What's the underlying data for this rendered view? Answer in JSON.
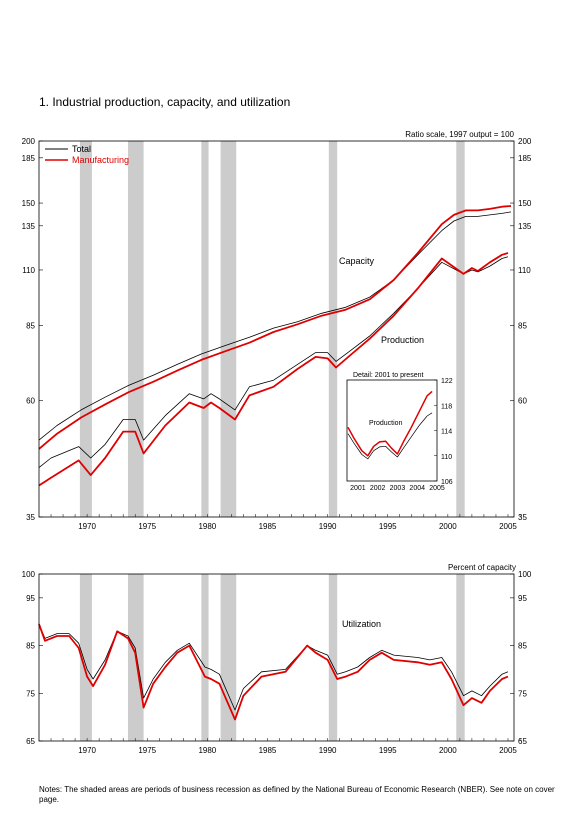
{
  "title": "1.  Industrial production, capacity, and utilization",
  "notes": "Notes: The shaded areas are periods of business recession as defined by the National Bureau of Economic Research (NBER). See note on cover page.",
  "colors": {
    "total": "#000000",
    "manufacturing": "#e00000",
    "recession": "#cccccc"
  },
  "chart_data": [
    {
      "type": "line",
      "scale_note": "Ratio scale, 1997 output = 100",
      "yscale": "log",
      "ylim": [
        35,
        200
      ],
      "yticks": [
        35,
        60,
        85,
        110,
        135,
        150,
        185,
        200
      ],
      "yticks_label": [
        "35",
        "60",
        "85",
        "110",
        "135",
        "150",
        "185",
        "200"
      ],
      "xlim": [
        1966.5,
        2006
      ],
      "xticks": [
        1970,
        1975,
        1980,
        1985,
        1990,
        1995,
        2000,
        2005
      ],
      "xticks_label": [
        "1970",
        "1975",
        "1980",
        "1985",
        "1990",
        "1995",
        "2000",
        "2005"
      ],
      "legend": [
        "Total",
        "Manufacturing"
      ],
      "legend_position": "top-left",
      "annotations": [
        "Capacity",
        "Production"
      ],
      "recessions": [
        [
          1969.9,
          1970.9
        ],
        [
          1973.9,
          1975.2
        ],
        [
          1980.0,
          1980.6
        ],
        [
          1981.6,
          1982.9
        ],
        [
          1990.6,
          1991.3
        ],
        [
          2001.2,
          2001.9
        ]
      ],
      "series": [
        {
          "name": "Total",
          "group": "Capacity",
          "x": [
            1966.5,
            1968,
            1970,
            1972,
            1974,
            1976,
            1978,
            1980,
            1982,
            1984,
            1986,
            1988,
            1990,
            1992,
            1994,
            1996,
            1998,
            2000,
            2001,
            2002,
            2003,
            2004,
            2005,
            2005.75
          ],
          "values": [
            50,
            53.5,
            57.5,
            61,
            64.5,
            67.5,
            71,
            74.5,
            77.5,
            80.5,
            84,
            86.5,
            90,
            92.5,
            97,
            105,
            118,
            132,
            138,
            141,
            141,
            142,
            143,
            144
          ]
        },
        {
          "name": "Manufacturing",
          "group": "Capacity",
          "x": [
            1966.5,
            1968,
            1970,
            1972,
            1974,
            1976,
            1978,
            1980,
            1982,
            1984,
            1986,
            1988,
            1990,
            1992,
            1994,
            1996,
            1998,
            2000,
            2001,
            2002,
            2003,
            2004,
            2005,
            2005.75
          ],
          "values": [
            48,
            51.5,
            55.5,
            59,
            62.5,
            65.5,
            69,
            72.5,
            75.5,
            78.5,
            82.5,
            85.5,
            89,
            91.5,
            96,
            105,
            119,
            136,
            142,
            145,
            145,
            146,
            147.5,
            148
          ]
        },
        {
          "name": "Total",
          "group": "Production",
          "x": [
            1966.5,
            1967.5,
            1969.8,
            1970.8,
            1972,
            1973.5,
            1974.5,
            1975.2,
            1977,
            1979,
            1980.2,
            1980.8,
            1981.5,
            1982.8,
            1984,
            1986,
            1988,
            1989.5,
            1990.5,
            1991.2,
            1992.5,
            1994,
            1996,
            1998,
            2000,
            2001.8,
            2002.5,
            2003,
            2004,
            2005,
            2005.5
          ],
          "values": [
            44,
            46,
            48.5,
            46,
            49,
            55,
            55,
            50,
            56,
            62,
            60.5,
            62,
            60.5,
            57.5,
            64,
            66,
            71,
            75,
            75,
            72,
            76,
            81,
            90,
            101,
            114,
            108,
            110,
            109,
            112,
            116,
            117
          ]
        },
        {
          "name": "Manufacturing",
          "group": "Production",
          "x": [
            1966.5,
            1967.5,
            1969.8,
            1970.8,
            1972,
            1973.5,
            1974.5,
            1975.2,
            1977,
            1979,
            1980.2,
            1980.8,
            1981.5,
            1982.8,
            1984,
            1986,
            1988,
            1989.5,
            1990.5,
            1991.2,
            1992.5,
            1994,
            1996,
            1998,
            2000,
            2001.8,
            2002.5,
            2003,
            2004,
            2005,
            2005.5
          ],
          "values": [
            40.5,
            42,
            45.5,
            42.5,
            46,
            52,
            52,
            47,
            53.5,
            59.5,
            58,
            59.5,
            58,
            55,
            61.5,
            64,
            69.5,
            73.5,
            73,
            70,
            74.5,
            80,
            89,
            101,
            116,
            108,
            111,
            109.5,
            114,
            118,
            119
          ]
        }
      ],
      "inset": {
        "type": "line",
        "title": "Detail: 2001 to present",
        "annotation": "Production",
        "xlim": [
          2000.95,
          2005.5
        ],
        "ylim": [
          106,
          122
        ],
        "xticks": [
          2001,
          2002,
          2003,
          2004,
          2005
        ],
        "xticks_label": [
          "2001",
          "2002",
          "2003",
          "2004",
          "2005"
        ],
        "yticks": [
          106,
          110,
          114,
          118,
          122
        ],
        "yticks_label": [
          "106",
          "110",
          "114",
          "118",
          "122"
        ],
        "series": [
          {
            "name": "Total",
            "x": [
              2001.0,
              2001.3,
              2001.7,
              2002.0,
              2002.3,
              2002.6,
              2002.9,
              2003.2,
              2003.5,
              2003.8,
              2004.2,
              2004.6,
              2005.0,
              2005.25
            ],
            "values": [
              113.5,
              112,
              110.2,
              109.5,
              110.8,
              111.4,
              111.5,
              110.6,
              109.8,
              111.2,
              113,
              114.8,
              116.3,
              116.8
            ]
          },
          {
            "name": "Manufacturing",
            "x": [
              2001.0,
              2001.3,
              2001.7,
              2002.0,
              2002.3,
              2002.6,
              2002.9,
              2003.2,
              2003.5,
              2003.8,
              2004.2,
              2004.6,
              2005.0,
              2005.25
            ],
            "values": [
              114.5,
              112.8,
              110.8,
              110.0,
              111.5,
              112.2,
              112.3,
              111.2,
              110.3,
              112.2,
              114.5,
              117,
              119.5,
              120.2
            ]
          }
        ]
      }
    },
    {
      "type": "line",
      "scale_note": "Percent of capacity",
      "ylim": [
        65,
        100
      ],
      "yticks": [
        65,
        75,
        85,
        95,
        100
      ],
      "yticks_label": [
        "65",
        "75",
        "85",
        "95",
        "100"
      ],
      "xlim": [
        1966.5,
        2006
      ],
      "xticks": [
        1970,
        1975,
        1980,
        1985,
        1990,
        1995,
        2000,
        2005
      ],
      "xticks_label": [
        "1970",
        "1975",
        "1980",
        "1985",
        "1990",
        "1995",
        "2000",
        "2005"
      ],
      "annotation": "Utilization",
      "recessions": [
        [
          1969.9,
          1970.9
        ],
        [
          1973.9,
          1975.2
        ],
        [
          1980.0,
          1980.6
        ],
        [
          1981.6,
          1982.9
        ],
        [
          1990.6,
          1991.3
        ],
        [
          2001.2,
          2001.9
        ]
      ],
      "series": [
        {
          "name": "Total",
          "x": [
            1966.5,
            1967,
            1968,
            1969,
            1969.8,
            1970.5,
            1971,
            1972,
            1973,
            1973.9,
            1974.5,
            1975.2,
            1976,
            1977,
            1978,
            1979,
            1980.3,
            1980.8,
            1981.5,
            1982.8,
            1983.5,
            1985,
            1987,
            1988.8,
            1989.5,
            1990.5,
            1991.3,
            1992,
            1993,
            1994,
            1995,
            1996,
            1998,
            1999,
            2000,
            2000.8,
            2001.8,
            2002.5,
            2003.3,
            2004,
            2005,
            2005.5
          ],
          "values": [
            89.5,
            86.5,
            87.5,
            87.5,
            85.5,
            80,
            78,
            82,
            88,
            87,
            84.5,
            74,
            78,
            81.5,
            84,
            85.5,
            80.5,
            80,
            79,
            71.5,
            76,
            79.5,
            80,
            85,
            84,
            83,
            79,
            79.5,
            80.5,
            82.5,
            84,
            83,
            82.5,
            82,
            82.5,
            79.5,
            74.5,
            75.5,
            74.5,
            76.5,
            79,
            79.5
          ]
        },
        {
          "name": "Manufacturing",
          "x": [
            1966.5,
            1967,
            1968,
            1969,
            1969.8,
            1970.5,
            1971,
            1972,
            1973,
            1973.9,
            1974.5,
            1975.2,
            1976,
            1977,
            1978,
            1979,
            1980.3,
            1980.8,
            1981.5,
            1982.8,
            1983.5,
            1985,
            1987,
            1988.8,
            1989.5,
            1990.5,
            1991.3,
            1992,
            1993,
            1994,
            1995,
            1996,
            1998,
            1999,
            2000,
            2000.8,
            2001.8,
            2002.5,
            2003.3,
            2004,
            2005,
            2005.5
          ],
          "values": [
            89.5,
            86,
            87,
            87,
            84.5,
            78.5,
            76.5,
            81,
            88,
            86.5,
            83.5,
            72,
            77,
            80.5,
            83.5,
            85,
            78.5,
            78,
            77,
            69.5,
            74.5,
            78.5,
            79.5,
            85,
            83.5,
            82,
            78,
            78.5,
            79.5,
            82,
            83.5,
            82,
            81.5,
            81,
            81.5,
            78,
            72.5,
            74,
            73,
            75.5,
            78,
            78.5
          ]
        }
      ]
    }
  ]
}
